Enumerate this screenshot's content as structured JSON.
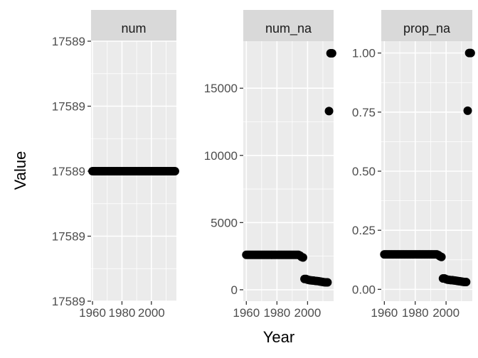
{
  "chart_data": {
    "type": "scatter",
    "xlabel": "Year",
    "ylabel": "Value",
    "grid": true,
    "x_ticks": [
      1960,
      1980,
      2000
    ],
    "facets": [
      {
        "name": "num",
        "xlim": [
          1959,
          2017
        ],
        "ylim": [
          -2,
          2
        ],
        "y_ticks": [
          -2,
          -1,
          0,
          1,
          2
        ],
        "y_tick_labels": [
          "17589",
          "17589",
          "17589",
          "17589",
          "17589"
        ],
        "x": [
          1960,
          1961,
          1962,
          1963,
          1964,
          1965,
          1966,
          1967,
          1968,
          1969,
          1970,
          1971,
          1972,
          1973,
          1974,
          1975,
          1976,
          1977,
          1978,
          1979,
          1980,
          1981,
          1982,
          1983,
          1984,
          1985,
          1986,
          1987,
          1988,
          1989,
          1990,
          1991,
          1992,
          1993,
          1994,
          1995,
          1996,
          1997,
          1998,
          1999,
          2000,
          2001,
          2002,
          2003,
          2004,
          2005,
          2006,
          2007,
          2008,
          2009,
          2010,
          2011,
          2012,
          2013,
          2014,
          2015,
          2016
        ],
        "y": [
          0,
          0,
          0,
          0,
          0,
          0,
          0,
          0,
          0,
          0,
          0,
          0,
          0,
          0,
          0,
          0,
          0,
          0,
          0,
          0,
          0,
          0,
          0,
          0,
          0,
          0,
          0,
          0,
          0,
          0,
          0,
          0,
          0,
          0,
          0,
          0,
          0,
          0,
          0,
          0,
          0,
          0,
          0,
          0,
          0,
          0,
          0,
          0,
          0,
          0,
          0,
          0,
          0,
          0,
          0,
          0,
          0
        ]
      },
      {
        "name": "num_na",
        "xlim": [
          1958,
          2017
        ],
        "ylim": [
          -850,
          18500
        ],
        "y_ticks": [
          0,
          5000,
          10000,
          15000
        ],
        "y_tick_labels": [
          "0",
          "5000",
          "10000",
          "15000"
        ],
        "x": [
          1960,
          1961,
          1962,
          1963,
          1964,
          1965,
          1966,
          1967,
          1968,
          1969,
          1970,
          1971,
          1972,
          1973,
          1974,
          1975,
          1976,
          1977,
          1978,
          1979,
          1980,
          1981,
          1982,
          1983,
          1984,
          1985,
          1986,
          1987,
          1988,
          1989,
          1990,
          1991,
          1992,
          1993,
          1994,
          1995,
          1996,
          1997,
          1998,
          1999,
          2000,
          2001,
          2002,
          2003,
          2004,
          2005,
          2006,
          2007,
          2008,
          2009,
          2010,
          2011,
          2012,
          2013,
          2014,
          2015,
          2016
        ],
        "y": [
          2600,
          2600,
          2600,
          2600,
          2600,
          2600,
          2600,
          2600,
          2600,
          2600,
          2600,
          2600,
          2600,
          2600,
          2600,
          2600,
          2600,
          2600,
          2600,
          2600,
          2600,
          2600,
          2600,
          2600,
          2600,
          2600,
          2600,
          2600,
          2600,
          2600,
          2600,
          2600,
          2600,
          2600,
          2600,
          2550,
          2450,
          2400,
          800,
          800,
          750,
          720,
          700,
          690,
          680,
          660,
          650,
          640,
          620,
          600,
          580,
          560,
          550,
          550,
          13300,
          17600,
          17600
        ]
      },
      {
        "name": "prop_na",
        "xlim": [
          1958,
          2017
        ],
        "ylim": [
          -0.05,
          1.05
        ],
        "y_ticks": [
          0,
          0.25,
          0.5,
          0.75,
          1.0
        ],
        "y_tick_labels": [
          "0.00",
          "0.25",
          "0.50",
          "0.75",
          "1.00"
        ],
        "x": [
          1960,
          1961,
          1962,
          1963,
          1964,
          1965,
          1966,
          1967,
          1968,
          1969,
          1970,
          1971,
          1972,
          1973,
          1974,
          1975,
          1976,
          1977,
          1978,
          1979,
          1980,
          1981,
          1982,
          1983,
          1984,
          1985,
          1986,
          1987,
          1988,
          1989,
          1990,
          1991,
          1992,
          1993,
          1994,
          1995,
          1996,
          1997,
          1998,
          1999,
          2000,
          2001,
          2002,
          2003,
          2004,
          2005,
          2006,
          2007,
          2008,
          2009,
          2010,
          2011,
          2012,
          2013,
          2014,
          2015,
          2016
        ],
        "y": [
          0.148,
          0.148,
          0.148,
          0.148,
          0.148,
          0.148,
          0.148,
          0.148,
          0.148,
          0.148,
          0.148,
          0.148,
          0.148,
          0.148,
          0.148,
          0.148,
          0.148,
          0.148,
          0.148,
          0.148,
          0.148,
          0.148,
          0.148,
          0.148,
          0.148,
          0.148,
          0.148,
          0.148,
          0.148,
          0.148,
          0.148,
          0.148,
          0.148,
          0.148,
          0.148,
          0.145,
          0.14,
          0.137,
          0.046,
          0.046,
          0.043,
          0.041,
          0.04,
          0.039,
          0.039,
          0.038,
          0.037,
          0.036,
          0.035,
          0.034,
          0.033,
          0.032,
          0.031,
          0.031,
          0.756,
          1.0,
          1.0
        ]
      }
    ]
  }
}
